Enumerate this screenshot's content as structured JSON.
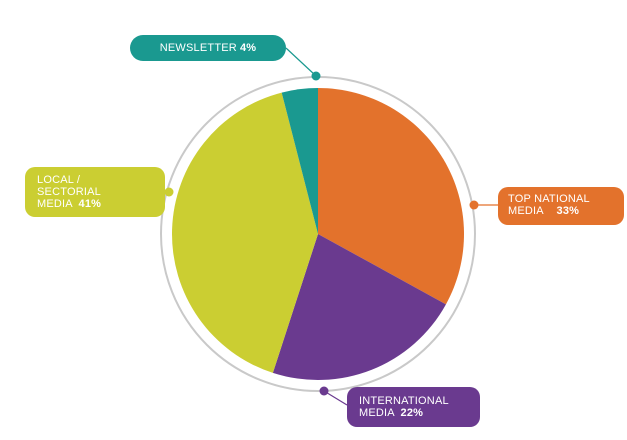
{
  "chart_data": {
    "type": "pie",
    "slices": [
      {
        "label": "TOP NATIONAL MEDIA",
        "value": 33,
        "color": "#E3722C"
      },
      {
        "label": "INTERNATIONAL MEDIA",
        "value": 22,
        "color": "#6A3A8F"
      },
      {
        "label": "LOCAL / SECTORIAL MEDIA",
        "value": 41,
        "color": "#CBCE32"
      },
      {
        "label": "NEWSLETTER",
        "value": 4,
        "color": "#1A9990"
      }
    ]
  },
  "callouts": {
    "newsletter": {
      "label": "NEWSLETTER",
      "pct": "4%"
    },
    "local": {
      "line1": "LOCAL /",
      "line2": "SECTORIAL",
      "line3": "MEDIA",
      "pct": "41%"
    },
    "top": {
      "line1": "TOP NATIONAL",
      "line2": "MEDIA",
      "pct": "33%"
    },
    "intl": {
      "line1": "INTERNATIONAL",
      "line2": "MEDIA",
      "pct": "22%"
    }
  }
}
